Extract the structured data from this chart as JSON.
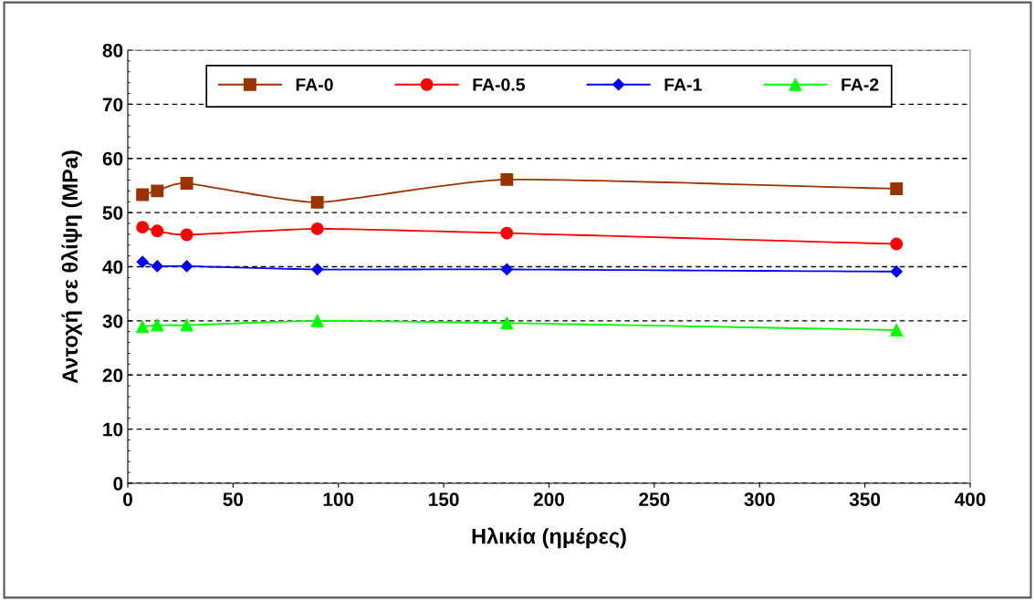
{
  "chart_data": {
    "type": "line",
    "xlabel": "Ηλικία (ημέρες)",
    "ylabel": "Αντοχή σε θλίψη (MPa)",
    "x": [
      7,
      14,
      28,
      90,
      180,
      365
    ],
    "series": [
      {
        "name": "FA-0",
        "color": "#993300",
        "marker": "square",
        "values": [
          53.3,
          54.0,
          55.4,
          51.9,
          56.1,
          54.4
        ]
      },
      {
        "name": "FA-0.5",
        "color": "#ff0000",
        "marker": "circle",
        "values": [
          47.3,
          46.6,
          45.9,
          47.0,
          46.2,
          44.2
        ]
      },
      {
        "name": "FA-1",
        "color": "#0000ff",
        "marker": "diamond",
        "values": [
          40.9,
          40.1,
          40.1,
          39.5,
          39.5,
          39.1
        ]
      },
      {
        "name": "FA-2",
        "color": "#00ff00",
        "marker": "triangle",
        "values": [
          28.9,
          29.2,
          29.2,
          30.0,
          29.6,
          28.3
        ]
      }
    ],
    "xlim": [
      0,
      400
    ],
    "xticks": [
      0,
      50,
      100,
      150,
      200,
      250,
      300,
      350,
      400
    ],
    "ylim": [
      0,
      80
    ],
    "yticks": [
      0,
      10,
      20,
      30,
      40,
      50,
      60,
      70,
      80
    ],
    "grid": "y",
    "legend": "top",
    "line_style": "solid"
  }
}
